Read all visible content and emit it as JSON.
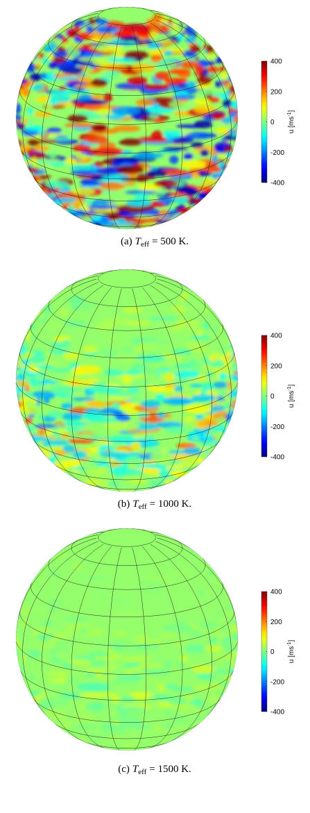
{
  "figure": {
    "panels": [
      {
        "caption": {
          "label": "(a)",
          "symbol": "T",
          "subscript": "eff",
          "text": "= 500 K."
        },
        "colorbar": {
          "label": "u [ms",
          "label_superscript": "-1",
          "label_end": "]",
          "lim": [
            -400,
            400
          ],
          "ticks": [
            400,
            200,
            0,
            -200,
            -400
          ]
        }
      },
      {
        "caption": {
          "label": "(b)",
          "symbol": "T",
          "subscript": "eff",
          "text": "= 1000 K."
        },
        "colorbar": {
          "label": "u [ms",
          "label_superscript": "-1",
          "label_end": "]",
          "lim": [
            -400,
            400
          ],
          "ticks": [
            400,
            200,
            0,
            -200,
            -400
          ]
        }
      },
      {
        "caption": {
          "label": "(c)",
          "symbol": "T",
          "subscript": "eff",
          "text": "= 1500 K."
        },
        "colorbar": {
          "label": "u [ms",
          "label_superscript": "-1",
          "label_end": "]",
          "lim": [
            -400,
            400
          ],
          "ticks": [
            400,
            200,
            0,
            -200,
            -400
          ]
        }
      }
    ]
  }
}
